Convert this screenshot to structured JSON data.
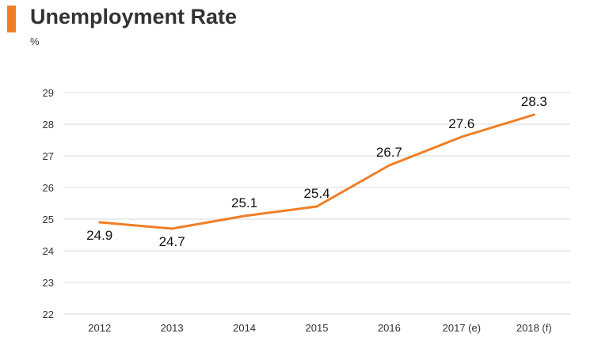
{
  "header": {
    "title": "Unemployment Rate",
    "unit": "%"
  },
  "colors": {
    "accent": "#f07e26",
    "line": "#f07e26",
    "grid": "#d9d9d9",
    "text": "#333333"
  },
  "chart_data": {
    "type": "line",
    "title": "Unemployment Rate",
    "ylabel": "%",
    "xlabel": "",
    "categories": [
      "2012",
      "2013",
      "2014",
      "2015",
      "2016",
      "2017 (e)",
      "2018 (f)"
    ],
    "series": [
      {
        "values": [
          24.9,
          24.7,
          25.1,
          25.4,
          26.7,
          27.6,
          28.3
        ]
      }
    ],
    "data_labels": [
      "24.9",
      "24.7",
      "25.1",
      "25.4",
      "26.7",
      "27.6",
      "28.3"
    ],
    "ylim": [
      22,
      29
    ],
    "yticks": [
      22,
      23,
      24,
      25,
      26,
      27,
      28,
      29
    ],
    "grid": true,
    "legend": "none"
  }
}
